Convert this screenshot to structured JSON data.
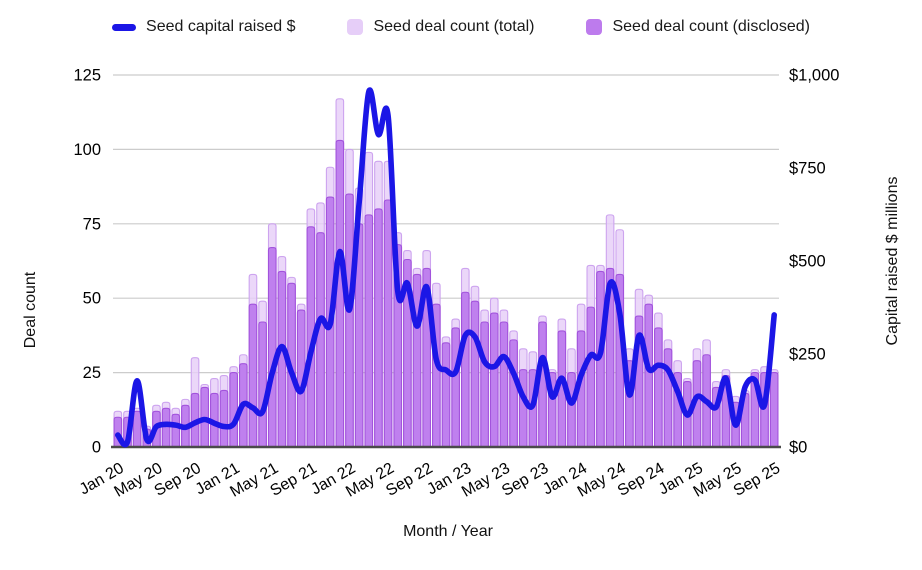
{
  "chart_data": {
    "type": "combo",
    "title": "",
    "x_axis": {
      "label": "Month / Year",
      "tick_every": 4
    },
    "left_axis": {
      "label": "Deal count",
      "ticks": [
        0,
        25,
        50,
        75,
        100,
        125
      ],
      "range": [
        0,
        125
      ]
    },
    "right_axis": {
      "label": "Capital raised $ millions",
      "tick_labels": [
        "$0",
        "$250",
        "$500",
        "$750",
        "$1,000"
      ],
      "tick_values": [
        0,
        250,
        500,
        750,
        1000
      ],
      "range": [
        0,
        1000
      ]
    },
    "legend_position": "top",
    "grid": true,
    "months": [
      "Jan 20",
      "Feb 20",
      "Mar 20",
      "Apr 20",
      "May 20",
      "Jun 20",
      "Jul 20",
      "Aug 20",
      "Sep 20",
      "Oct 20",
      "Nov 20",
      "Dec 20",
      "Jan 21",
      "Feb 21",
      "Mar 21",
      "Apr 21",
      "May 21",
      "Jun 21",
      "Jul 21",
      "Aug 21",
      "Sep 21",
      "Oct 21",
      "Nov 21",
      "Dec 21",
      "Jan 22",
      "Feb 22",
      "Mar 22",
      "Apr 22",
      "May 22",
      "Jun 22",
      "Jul 22",
      "Aug 22",
      "Sep 22",
      "Oct 22",
      "Nov 22",
      "Dec 22",
      "Jan 23",
      "Feb 23",
      "Mar 23",
      "Apr 23",
      "May 23",
      "Jun 23",
      "Jul 23",
      "Aug 23",
      "Sep 23",
      "Oct 23",
      "Nov 23",
      "Dec 23",
      "Jan 24",
      "Feb 24",
      "Mar 24",
      "Apr 24",
      "May 24",
      "Jun 24",
      "Jul 24",
      "Aug 24",
      "Sep 24",
      "Oct 24",
      "Nov 24",
      "Dec 24",
      "Jan 25",
      "Feb 25",
      "Mar 25",
      "Apr 25",
      "May 25",
      "Jun 25",
      "Jul 25",
      "Aug 25",
      "Sep 25"
    ],
    "series": [
      {
        "name": "Seed capital raised $",
        "type": "line",
        "axis": "right",
        "unit": "$ millions",
        "values": [
          32,
          14,
          178,
          20,
          55,
          61,
          59,
          53,
          65,
          74,
          64,
          55,
          62,
          115,
          105,
          95,
          200,
          270,
          200,
          150,
          255,
          345,
          330,
          525,
          370,
          655,
          955,
          840,
          890,
          420,
          440,
          325,
          430,
          235,
          207,
          202,
          300,
          296,
          229,
          216,
          243,
          198,
          135,
          113,
          240,
          135,
          185,
          118,
          193,
          247,
          252,
          440,
          360,
          140,
          300,
          210,
          220,
          207,
          149,
          86,
          135,
          122,
          108,
          185,
          59,
          162,
          180,
          113,
          355
        ]
      },
      {
        "name": "Seed deal count (total)",
        "type": "bar",
        "axis": "left",
        "values": [
          12,
          12,
          13,
          7,
          14,
          15,
          13,
          16,
          30,
          21,
          23,
          24,
          27,
          31,
          58,
          49,
          75,
          64,
          57,
          48,
          80,
          82,
          94,
          117,
          100,
          87,
          99,
          96,
          96,
          72,
          66,
          60,
          66,
          55,
          37,
          43,
          60,
          54,
          46,
          50,
          46,
          39,
          33,
          32,
          44,
          26,
          43,
          33,
          48,
          61,
          61,
          78,
          73,
          33,
          53,
          51,
          45,
          36,
          29,
          23,
          33,
          36,
          22,
          26,
          17,
          19,
          26,
          27,
          26
        ]
      },
      {
        "name": "Seed deal count (disclosed)",
        "type": "bar",
        "axis": "left",
        "values": [
          10,
          10,
          12,
          6,
          12,
          13,
          11,
          14,
          18,
          20,
          18,
          19,
          25,
          28,
          48,
          42,
          67,
          59,
          55,
          46,
          74,
          72,
          84,
          103,
          85,
          75,
          78,
          80,
          83,
          68,
          63,
          58,
          60,
          48,
          35,
          40,
          52,
          49,
          42,
          45,
          42,
          36,
          26,
          26,
          42,
          25,
          39,
          25,
          39,
          47,
          59,
          60,
          58,
          29,
          44,
          48,
          40,
          33,
          25,
          22,
          29,
          31,
          20,
          24,
          15,
          18,
          25,
          25,
          25
        ]
      }
    ],
    "colors": {
      "line": "#1b16e6",
      "total_fill": "#e6cef8",
      "total_stroke": "#cda4ef",
      "disclosed_fill": "#bd7bed",
      "disclosed_stroke": "#a253dc",
      "gridline": "#cccccc",
      "axis_line": "#4a4a4a",
      "text": "#000000"
    }
  }
}
